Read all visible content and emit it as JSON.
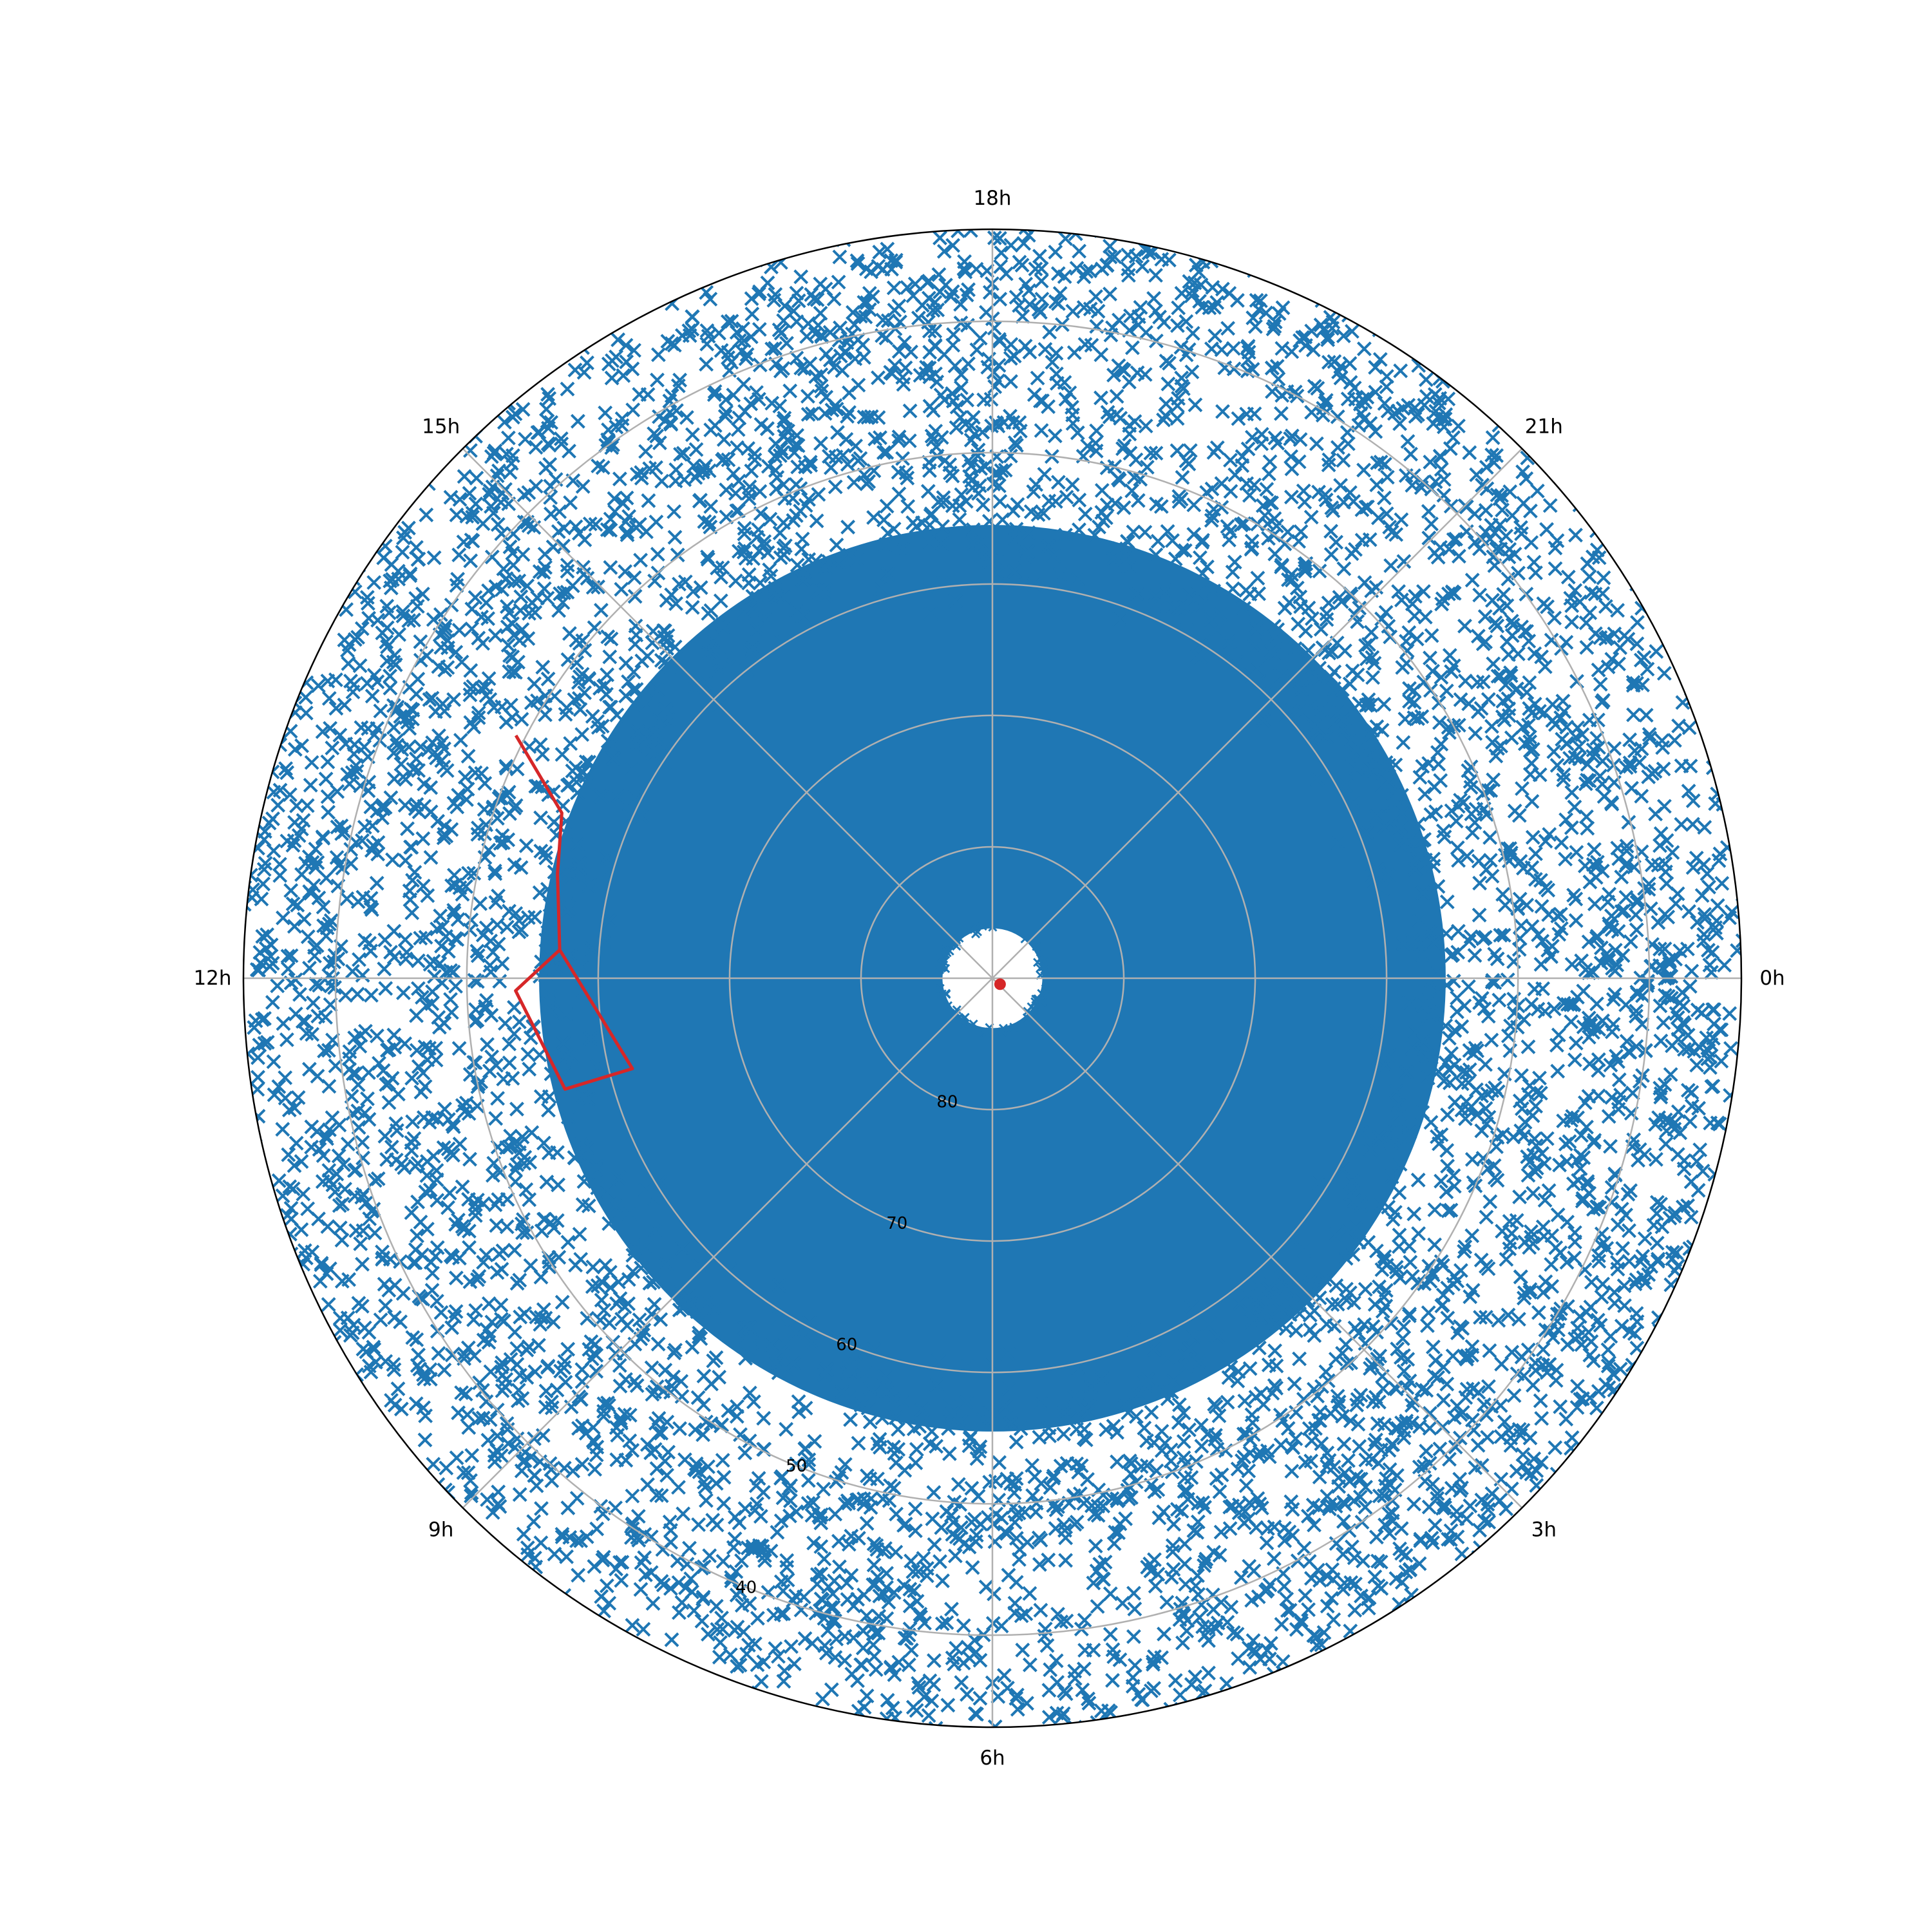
{
  "chart_data": {
    "type": "scatter",
    "projection": "polar",
    "title": "",
    "theta_unit": "hours of right ascension",
    "r_unit": "degrees of declination",
    "theta_direction": "clockwise",
    "theta_zero": "right",
    "theta_ticks": [
      "0h",
      "3h",
      "6h",
      "9h",
      "12h",
      "15h",
      "18h",
      "21h"
    ],
    "r_ticks": [
      "40",
      "50",
      "60",
      "70",
      "80"
    ],
    "r_tick_values": [
      40,
      50,
      60,
      70,
      80
    ],
    "r_range": [
      90,
      33
    ],
    "grid": true,
    "colors": {
      "stars": "#1f77b4",
      "asterism": "#d62728",
      "grid": "#b0b0b0",
      "frame": "#000000"
    },
    "series": [
      {
        "marker": "x",
        "color": "#1f77b4",
        "description_density": "dense field covering declination ~38° to ~86°; sparser toward lower declinations",
        "dec_range": [
          33,
          86.2
        ]
      },
      {
        "marker": "line",
        "color": "#d62728",
        "points": [
          {
            "ra_h": 13.8,
            "dec": 49.3
          },
          {
            "ra_h": 13.4,
            "dec": 54.9
          },
          {
            "ra_h": 12.9,
            "dec": 55.96
          },
          {
            "ra_h": 12.25,
            "dec": 57.0
          },
          {
            "ra_h": 11.9,
            "dec": 53.7
          },
          {
            "ra_h": 11.03,
            "dec": 56.4
          },
          {
            "ra_h": 11.06,
            "dec": 61.75
          },
          {
            "ra_h": 12.25,
            "dec": 57.0
          }
        ]
      },
      {
        "marker": "dot",
        "color": "#d62728",
        "points": [
          {
            "ra_h": 2.53,
            "dec": 89.26
          }
        ]
      }
    ]
  }
}
